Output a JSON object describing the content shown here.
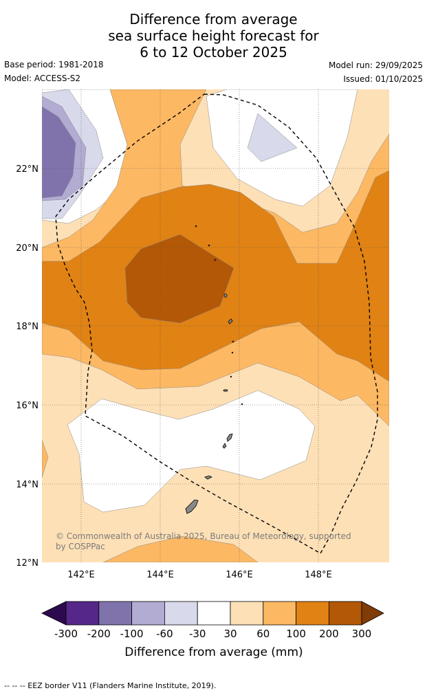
{
  "title": {
    "line1": "Difference from average",
    "line2": "sea surface height forecast for",
    "line3": "6 to 12 October 2025"
  },
  "meta": {
    "base_period": "Base period: 1981-2018",
    "model": "Model: ACCESS-S2",
    "model_run": "Model run: 29/09/2025",
    "issued": "Issued: 01/10/2025"
  },
  "map": {
    "lat_labels": [
      "22°N",
      "20°N",
      "18°N",
      "16°N",
      "14°N",
      "12°N"
    ],
    "lon_labels": [
      "142°E",
      "144°E",
      "146°E",
      "148°E"
    ],
    "copyright_line1": "© Commonwealth of Australia 2025, Bureau of Meteorology, supported",
    "copyright_line2": "by COSPPac"
  },
  "legend": {
    "ticks": [
      "-300",
      "-200",
      "-100",
      "-60",
      "-30",
      "30",
      "60",
      "100",
      "200",
      "300"
    ],
    "label": "Difference from average (mm)",
    "colors": [
      "#2d0a4e",
      "#542788",
      "#8073ac",
      "#b2abd2",
      "#d8daeb",
      "#ffffff",
      "#fee0b6",
      "#fdb863",
      "#e08214",
      "#b35806",
      "#7f3b08"
    ]
  },
  "footer": {
    "text": "--  --  -- EEZ border V11 (Flanders Marine Institute, 2019)."
  }
}
